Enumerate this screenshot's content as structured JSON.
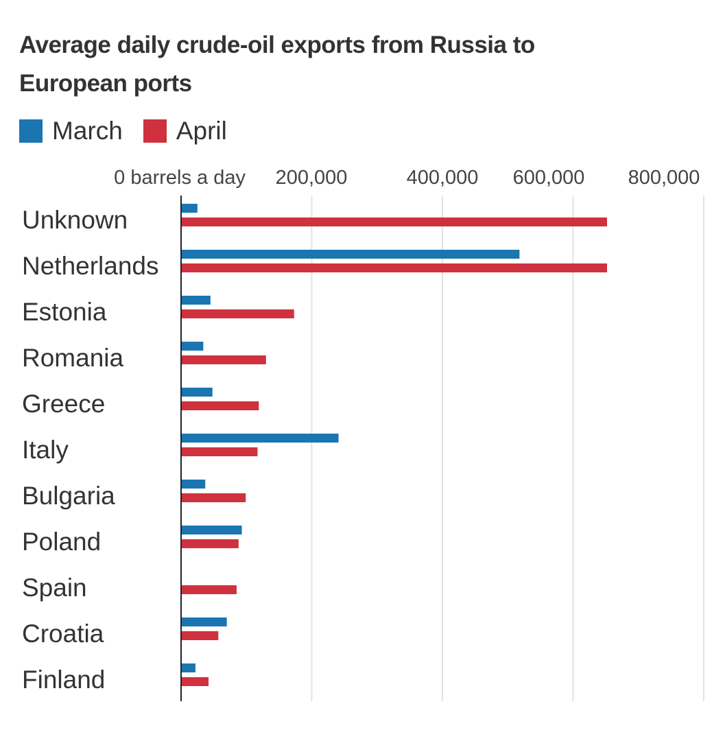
{
  "chart_data": {
    "type": "bar",
    "orientation": "horizontal",
    "title": "Average daily crude-oil exports from Russia to European ports",
    "categories": [
      "Unknown",
      "Netherlands",
      "Estonia",
      "Romania",
      "Greece",
      "Italy",
      "Bulgaria",
      "Poland",
      "Spain",
      "Croatia",
      "Finland"
    ],
    "series": [
      {
        "name": "March",
        "color": "#1a75b0",
        "values": [
          25000,
          518000,
          45000,
          34000,
          48000,
          241000,
          37000,
          93000,
          0,
          70000,
          22000
        ]
      },
      {
        "name": "April",
        "color": "#d0313e",
        "values": [
          652000,
          652000,
          173000,
          130000,
          119000,
          117000,
          99000,
          88000,
          85000,
          57000,
          42000
        ]
      }
    ],
    "xlim": [
      0,
      800000
    ],
    "xticks": [
      0,
      200000,
      400000,
      600000,
      800000
    ],
    "xtick_labels": [
      "0 barrels a day",
      "200,000",
      "400,000",
      "600,000",
      "800,000"
    ],
    "grid": true,
    "legend_position": "top-left"
  }
}
